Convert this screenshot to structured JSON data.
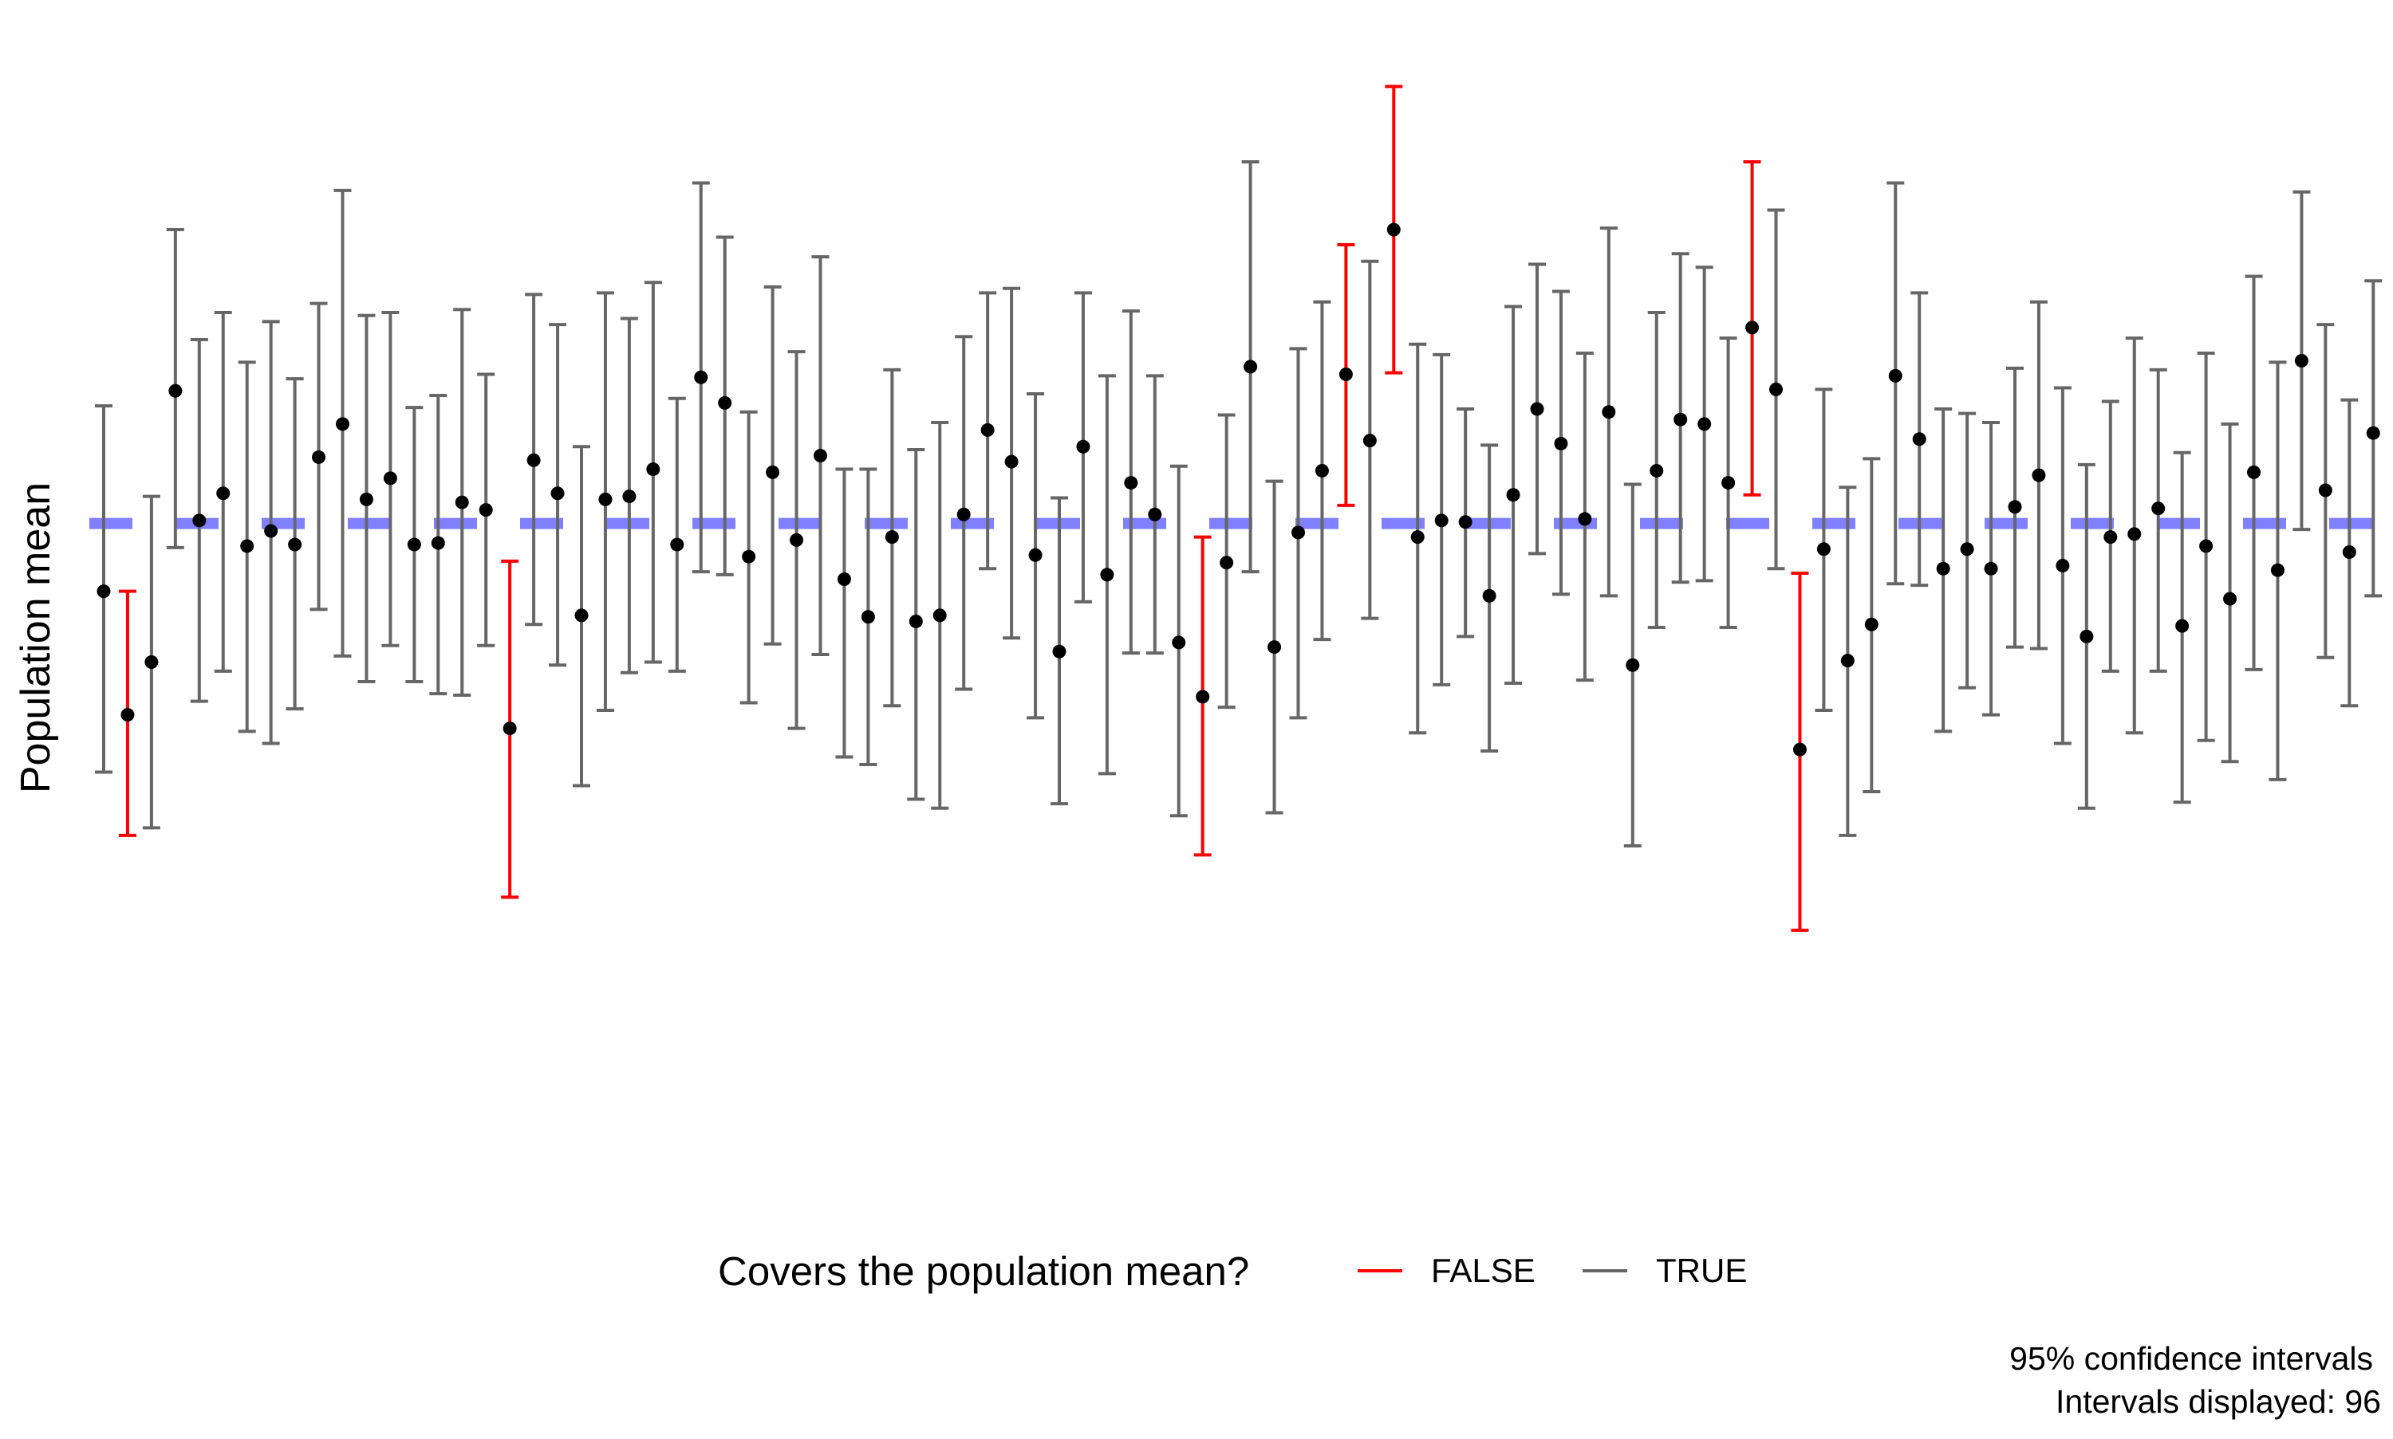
{
  "chart_data": {
    "type": "scatter",
    "title": "",
    "xlabel": "",
    "ylabel": "Population mean",
    "ylim": [
      -4.6,
      3.4
    ],
    "grid": false,
    "population_mean": 0,
    "reference_line": {
      "style": "dashed",
      "color": "#8080ff"
    },
    "legend": {
      "title": "Covers the population mean?",
      "position": "bottom",
      "entries": [
        {
          "label": "FALSE",
          "color": "#ff0000"
        },
        {
          "label": "TRUE",
          "color": "#666666"
        }
      ]
    },
    "caption": [
      "95% confidence intervals",
      "Intervals displayed: 96"
    ],
    "point_color": "#000000",
    "n_intervals": 96,
    "intervals": [
      {
        "mean": -0.45,
        "lower": -1.65,
        "upper": 0.78,
        "covers": true
      },
      {
        "mean": -1.27,
        "lower": -2.07,
        "upper": -0.45,
        "covers": false
      },
      {
        "mean": -0.92,
        "lower": -2.02,
        "upper": 0.18,
        "covers": true
      },
      {
        "mean": 0.88,
        "lower": -0.16,
        "upper": 1.95,
        "covers": true
      },
      {
        "mean": 0.02,
        "lower": -1.18,
        "upper": 1.22,
        "covers": true
      },
      {
        "mean": 0.2,
        "lower": -0.98,
        "upper": 1.4,
        "covers": true
      },
      {
        "mean": -0.15,
        "lower": -1.38,
        "upper": 1.07,
        "covers": true
      },
      {
        "mean": -0.05,
        "lower": -1.46,
        "upper": 1.34,
        "covers": true
      },
      {
        "mean": -0.14,
        "lower": -1.23,
        "upper": 0.96,
        "covers": true
      },
      {
        "mean": 0.44,
        "lower": -0.57,
        "upper": 1.46,
        "covers": true
      },
      {
        "mean": 0.66,
        "lower": -0.88,
        "upper": 2.21,
        "covers": true
      },
      {
        "mean": 0.16,
        "lower": -1.05,
        "upper": 1.38,
        "covers": true
      },
      {
        "mean": 0.3,
        "lower": -0.81,
        "upper": 1.4,
        "covers": true
      },
      {
        "mean": -0.14,
        "lower": -1.05,
        "upper": 0.77,
        "covers": true
      },
      {
        "mean": -0.13,
        "lower": -1.13,
        "upper": 0.85,
        "covers": true
      },
      {
        "mean": 0.14,
        "lower": -1.14,
        "upper": 1.42,
        "covers": true
      },
      {
        "mean": 0.09,
        "lower": -0.81,
        "upper": 0.99,
        "covers": true
      },
      {
        "mean": -1.36,
        "lower": -2.48,
        "upper": -0.25,
        "covers": false
      },
      {
        "mean": 0.42,
        "lower": -0.67,
        "upper": 1.52,
        "covers": true
      },
      {
        "mean": 0.2,
        "lower": -0.94,
        "upper": 1.32,
        "covers": true
      },
      {
        "mean": -0.61,
        "lower": -1.74,
        "upper": 0.51,
        "covers": true
      },
      {
        "mean": 0.16,
        "lower": -1.24,
        "upper": 1.53,
        "covers": true
      },
      {
        "mean": 0.18,
        "lower": -0.99,
        "upper": 1.36,
        "covers": true
      },
      {
        "mean": 0.36,
        "lower": -0.92,
        "upper": 1.6,
        "covers": true
      },
      {
        "mean": -0.14,
        "lower": -0.98,
        "upper": 0.83,
        "covers": true
      },
      {
        "mean": 0.97,
        "lower": -0.32,
        "upper": 2.26,
        "covers": true
      },
      {
        "mean": 0.8,
        "lower": -0.34,
        "upper": 1.9,
        "covers": true
      },
      {
        "mean": -0.22,
        "lower": -1.19,
        "upper": 0.74,
        "covers": true
      },
      {
        "mean": 0.34,
        "lower": -0.8,
        "upper": 1.57,
        "covers": true
      },
      {
        "mean": -0.11,
        "lower": -1.36,
        "upper": 1.14,
        "covers": true
      },
      {
        "mean": 0.45,
        "lower": -0.87,
        "upper": 1.77,
        "covers": true
      },
      {
        "mean": -0.37,
        "lower": -1.55,
        "upper": 0.36,
        "covers": true
      },
      {
        "mean": -0.62,
        "lower": -1.6,
        "upper": 0.36,
        "covers": true
      },
      {
        "mean": -0.09,
        "lower": -1.21,
        "upper": 1.02,
        "covers": true
      },
      {
        "mean": -0.65,
        "lower": -1.83,
        "upper": 0.49,
        "covers": true
      },
      {
        "mean": -0.61,
        "lower": -1.89,
        "upper": 0.67,
        "covers": true
      },
      {
        "mean": 0.06,
        "lower": -1.1,
        "upper": 1.24,
        "covers": true
      },
      {
        "mean": 0.62,
        "lower": -0.3,
        "upper": 1.53,
        "covers": true
      },
      {
        "mean": 0.41,
        "lower": -0.76,
        "upper": 1.56,
        "covers": true
      },
      {
        "mean": -0.21,
        "lower": -1.29,
        "upper": 0.86,
        "covers": true
      },
      {
        "mean": -0.85,
        "lower": -1.86,
        "upper": 0.17,
        "covers": true
      },
      {
        "mean": 0.51,
        "lower": -0.52,
        "upper": 1.53,
        "covers": true
      },
      {
        "mean": -0.34,
        "lower": -1.66,
        "upper": 0.98,
        "covers": true
      },
      {
        "mean": 0.27,
        "lower": -0.86,
        "upper": 1.41,
        "covers": true
      },
      {
        "mean": 0.06,
        "lower": -0.86,
        "upper": 0.98,
        "covers": true
      },
      {
        "mean": -0.79,
        "lower": -1.94,
        "upper": 0.38,
        "covers": true
      },
      {
        "mean": -1.15,
        "lower": -2.2,
        "upper": -0.09,
        "covers": false
      },
      {
        "mean": -0.26,
        "lower": -1.22,
        "upper": 0.72,
        "covers": true
      },
      {
        "mean": 1.04,
        "lower": -0.32,
        "upper": 2.4,
        "covers": true
      },
      {
        "mean": -0.82,
        "lower": -1.92,
        "upper": 0.28,
        "covers": true
      },
      {
        "mean": -0.06,
        "lower": -1.29,
        "upper": 1.16,
        "covers": true
      },
      {
        "mean": 0.35,
        "lower": -0.77,
        "upper": 1.47,
        "covers": true
      },
      {
        "mean": 0.99,
        "lower": 0.12,
        "upper": 1.85,
        "covers": false
      },
      {
        "mean": 0.55,
        "lower": -0.63,
        "upper": 1.74,
        "covers": true
      },
      {
        "mean": 1.95,
        "lower": 1.0,
        "upper": 2.9,
        "covers": false
      },
      {
        "mean": -0.09,
        "lower": -1.39,
        "upper": 1.19,
        "covers": true
      },
      {
        "mean": 0.02,
        "lower": -1.07,
        "upper": 1.12,
        "covers": true
      },
      {
        "mean": 0.01,
        "lower": -0.75,
        "upper": 0.76,
        "covers": true
      },
      {
        "mean": -0.48,
        "lower": -1.51,
        "upper": 0.52,
        "covers": true
      },
      {
        "mean": 0.19,
        "lower": -1.06,
        "upper": 1.44,
        "covers": true
      },
      {
        "mean": 0.76,
        "lower": -0.2,
        "upper": 1.72,
        "covers": true
      },
      {
        "mean": 0.53,
        "lower": -0.47,
        "upper": 1.54,
        "covers": true
      },
      {
        "mean": 0.03,
        "lower": -1.04,
        "upper": 1.13,
        "covers": true
      },
      {
        "mean": 0.74,
        "lower": -0.48,
        "upper": 1.96,
        "covers": true
      },
      {
        "mean": -0.94,
        "lower": -2.14,
        "upper": 0.26,
        "covers": true
      },
      {
        "mean": 0.35,
        "lower": -0.69,
        "upper": 1.4,
        "covers": true
      },
      {
        "mean": 0.69,
        "lower": -0.39,
        "upper": 1.79,
        "covers": true
      },
      {
        "mean": 0.66,
        "lower": -0.38,
        "upper": 1.7,
        "covers": true
      },
      {
        "mean": 0.27,
        "lower": -0.69,
        "upper": 1.23,
        "covers": true
      },
      {
        "mean": 1.3,
        "lower": 0.19,
        "upper": 2.4,
        "covers": false
      },
      {
        "mean": 0.89,
        "lower": -0.3,
        "upper": 2.08,
        "covers": true
      },
      {
        "mean": -1.5,
        "lower": -2.7,
        "upper": -0.33,
        "covers": false
      },
      {
        "mean": -0.17,
        "lower": -1.24,
        "upper": 0.89,
        "covers": true
      },
      {
        "mean": -0.91,
        "lower": -2.07,
        "upper": 0.24,
        "covers": true
      },
      {
        "mean": -0.67,
        "lower": -1.78,
        "upper": 0.43,
        "covers": true
      },
      {
        "mean": 0.98,
        "lower": -0.4,
        "upper": 2.26,
        "covers": true
      },
      {
        "mean": 0.56,
        "lower": -0.41,
        "upper": 1.53,
        "covers": true
      },
      {
        "mean": -0.3,
        "lower": -1.38,
        "upper": 0.76,
        "covers": true
      },
      {
        "mean": -0.17,
        "lower": -1.09,
        "upper": 0.73,
        "covers": true
      },
      {
        "mean": -0.3,
        "lower": -1.27,
        "upper": 0.67,
        "covers": true
      },
      {
        "mean": 0.11,
        "lower": -0.82,
        "upper": 1.03,
        "covers": true
      },
      {
        "mean": 0.32,
        "lower": -0.83,
        "upper": 1.47,
        "covers": true
      },
      {
        "mean": -0.28,
        "lower": -1.46,
        "upper": 0.9,
        "covers": true
      },
      {
        "mean": -0.75,
        "lower": -1.89,
        "upper": 0.39,
        "covers": true
      },
      {
        "mean": -0.09,
        "lower": -0.98,
        "upper": 0.81,
        "covers": true
      },
      {
        "mean": -0.07,
        "lower": -1.39,
        "upper": 1.23,
        "covers": true
      },
      {
        "mean": 0.1,
        "lower": -0.98,
        "upper": 1.02,
        "covers": true
      },
      {
        "mean": -0.68,
        "lower": -1.85,
        "upper": 0.47,
        "covers": true
      },
      {
        "mean": -0.15,
        "lower": -1.44,
        "upper": 1.13,
        "covers": true
      },
      {
        "mean": -0.5,
        "lower": -1.58,
        "upper": 0.66,
        "covers": true
      },
      {
        "mean": 0.34,
        "lower": -0.97,
        "upper": 1.64,
        "covers": true
      },
      {
        "mean": -0.31,
        "lower": -1.7,
        "upper": 1.07,
        "covers": true
      },
      {
        "mean": 1.08,
        "lower": -0.04,
        "upper": 2.2,
        "covers": true
      },
      {
        "mean": 0.22,
        "lower": -0.89,
        "upper": 1.32,
        "covers": true
      },
      {
        "mean": -0.19,
        "lower": -1.21,
        "upper": 0.82,
        "covers": true
      },
      {
        "mean": 0.6,
        "lower": -0.48,
        "upper": 1.61,
        "covers": true
      }
    ]
  }
}
